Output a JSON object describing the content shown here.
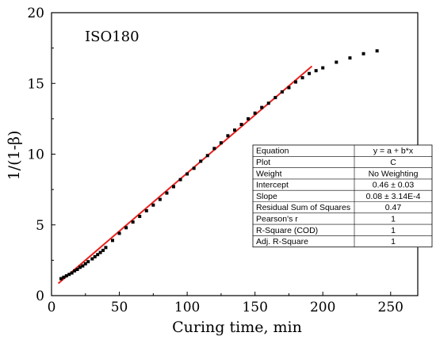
{
  "chart_data": {
    "type": "scatter",
    "xlabel": "Curing time, min",
    "ylabel": "1/(1-β)",
    "xlim": [
      0,
      270
    ],
    "ylim": [
      0,
      20
    ],
    "x_ticks": [
      0,
      50,
      100,
      150,
      200,
      250
    ],
    "y_ticks": [
      0,
      5,
      10,
      15,
      20
    ],
    "annotation": "ISO180",
    "series": [
      {
        "kind": "points",
        "color": "#000000",
        "x": [
          7,
          9,
          11,
          13,
          15,
          17,
          19,
          21,
          23,
          25,
          27,
          30,
          32,
          34,
          36,
          38,
          40,
          45,
          50,
          55,
          60,
          65,
          70,
          75,
          80,
          85,
          90,
          95,
          100,
          105,
          110,
          115,
          120,
          125,
          130,
          135,
          140,
          145,
          150,
          155,
          160,
          165,
          170,
          175,
          180,
          185,
          190,
          195,
          200,
          210,
          220,
          230,
          240
        ],
        "y": [
          1.2,
          1.3,
          1.4,
          1.5,
          1.6,
          1.75,
          1.85,
          2.0,
          2.1,
          2.25,
          2.4,
          2.6,
          2.75,
          2.9,
          3.05,
          3.2,
          3.4,
          3.9,
          4.4,
          4.8,
          5.2,
          5.6,
          6.0,
          6.4,
          6.8,
          7.25,
          7.7,
          8.2,
          8.6,
          9.0,
          9.5,
          9.9,
          10.4,
          10.8,
          11.3,
          11.7,
          12.1,
          12.5,
          12.9,
          13.3,
          13.6,
          14.0,
          14.4,
          14.7,
          15.1,
          15.4,
          15.7,
          15.9,
          16.1,
          16.5,
          16.8,
          17.1,
          17.3
        ]
      },
      {
        "kind": "fit-line",
        "color": "#e8231f",
        "x": [
          5,
          192
        ],
        "y": [
          0.86,
          16.22
        ]
      }
    ],
    "fit_table": {
      "rows": [
        [
          "Equation",
          "y = a + b*x"
        ],
        [
          "Plot",
          "C"
        ],
        [
          "Weight",
          "No Weighting"
        ],
        [
          "Intercept",
          "0.46 ± 0.03"
        ],
        [
          "Slope",
          "0.08 ± 3.14E-4"
        ],
        [
          "Residual Sum of Squares",
          "0.47"
        ],
        [
          "Pearson's r",
          "1"
        ],
        [
          "R-Square (COD)",
          "1"
        ],
        [
          "Adj. R-Square",
          "1"
        ]
      ]
    }
  }
}
